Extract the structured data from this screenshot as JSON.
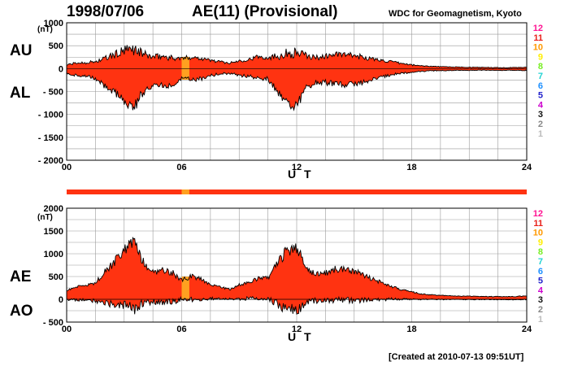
{
  "header": {
    "date": "1998/07/06",
    "title": "AE(11) (Provisional)",
    "source": "WDC for Geomagnetism, Kyoto"
  },
  "footer": {
    "created": "[Created at 2010-07-13 09:51UT]"
  },
  "station_scale": {
    "labels": [
      "12",
      "11",
      "10",
      "9",
      "8",
      "7",
      "6",
      "5",
      "4",
      "3",
      "2",
      "1"
    ],
    "colors": [
      "#ff1493",
      "#e8201a",
      "#ff9900",
      "#ffee00",
      "#77ee22",
      "#22d3d3",
      "#1e90ff",
      "#2222cc",
      "#cc00cc",
      "#111111",
      "#888888",
      "#bbbbbb"
    ]
  },
  "colors": {
    "fill": "#ff3311",
    "fill_10": "#ffa020",
    "outline": "#000000",
    "grid": "#9a9a9a"
  },
  "chart_data": [
    {
      "type": "area",
      "panel": "AU/AL",
      "series_labels": [
        "AU",
        "AL"
      ],
      "ylabel": "(nT)",
      "xlabel": "U T",
      "ylim": [
        -2000,
        1000
      ],
      "y_ticks": [
        1000,
        500,
        0,
        -500,
        -1000,
        -1500,
        -2000
      ],
      "y_tick_labels": [
        "1000",
        "500",
        "0",
        "- 500",
        "- 1000",
        "- 1500",
        "- 2000"
      ],
      "xlim": [
        0,
        24
      ],
      "x_ticks": [
        0,
        6,
        12,
        18,
        24
      ],
      "x_tick_labels": [
        "00",
        "06",
        "12",
        "18",
        "24"
      ],
      "x_grid_step_hours": 1.5,
      "y_grid_step": 250,
      "grid": true,
      "x": [
        0,
        0.5,
        1,
        1.5,
        2,
        2.5,
        3,
        3.5,
        4,
        4.5,
        5,
        5.5,
        6,
        6.5,
        7,
        7.5,
        8,
        8.5,
        9,
        9.5,
        10,
        10.5,
        11,
        11.5,
        12,
        12.5,
        13,
        13.5,
        14,
        14.5,
        15,
        15.5,
        16,
        16.5,
        17,
        17.5,
        18,
        18.5,
        19,
        19.5,
        20,
        20.5,
        21,
        21.5,
        22,
        22.5,
        23,
        23.5,
        24
      ],
      "AU": [
        80,
        120,
        130,
        150,
        220,
        300,
        380,
        430,
        320,
        250,
        270,
        230,
        220,
        250,
        230,
        180,
        150,
        120,
        170,
        200,
        260,
        240,
        280,
        330,
        350,
        280,
        240,
        270,
        310,
        300,
        280,
        250,
        200,
        180,
        140,
        110,
        80,
        60,
        50,
        40,
        35,
        30,
        30,
        25,
        25,
        20,
        20,
        25,
        30
      ],
      "AL": [
        -100,
        -150,
        -160,
        -220,
        -380,
        -520,
        -700,
        -850,
        -500,
        -350,
        -380,
        -360,
        -200,
        -250,
        -220,
        -150,
        -120,
        -100,
        -150,
        -160,
        -200,
        -220,
        -500,
        -750,
        -800,
        -420,
        -300,
        -300,
        -350,
        -350,
        -330,
        -290,
        -230,
        -180,
        -130,
        -100,
        -80,
        -60,
        -50,
        -45,
        -40,
        -40,
        -40,
        -35,
        -35,
        -40,
        -35,
        -40,
        -40
      ],
      "stations_10_intervals": [
        [
          6.0,
          6.4
        ]
      ]
    },
    {
      "type": "area",
      "panel": "AE/AO",
      "series_labels": [
        "AE",
        "AO"
      ],
      "ylabel": "(nT)",
      "xlabel": "U T",
      "ylim": [
        -500,
        2000
      ],
      "y_ticks": [
        2000,
        1500,
        1000,
        500,
        0,
        -500
      ],
      "y_tick_labels": [
        "2000",
        "1500",
        "1000",
        "500",
        "0",
        "- 500"
      ],
      "xlim": [
        0,
        24
      ],
      "x_ticks": [
        0,
        6,
        12,
        18,
        24
      ],
      "x_tick_labels": [
        "00",
        "06",
        "12",
        "18",
        "24"
      ],
      "x_grid_step_hours": 1.5,
      "y_grid_step": 250,
      "grid": true,
      "x": [
        0,
        0.5,
        1,
        1.5,
        2,
        2.5,
        3,
        3.5,
        4,
        4.5,
        5,
        5.5,
        6,
        6.5,
        7,
        7.5,
        8,
        8.5,
        9,
        9.5,
        10,
        10.5,
        11,
        11.5,
        12,
        12.5,
        13,
        13.5,
        14,
        14.5,
        15,
        15.5,
        16,
        16.5,
        17,
        17.5,
        18,
        18.5,
        19,
        19.5,
        20,
        20.5,
        21,
        21.5,
        22,
        22.5,
        23,
        23.5,
        24
      ],
      "AE": [
        200,
        270,
        290,
        370,
        600,
        820,
        1080,
        1250,
        820,
        600,
        650,
        590,
        420,
        500,
        450,
        330,
        270,
        220,
        320,
        360,
        460,
        460,
        780,
        1080,
        1150,
        700,
        540,
        570,
        660,
        650,
        610,
        540,
        430,
        360,
        270,
        210,
        160,
        120,
        100,
        85,
        75,
        70,
        70,
        60,
        60,
        60,
        55,
        65,
        70
      ],
      "AO": [
        -10,
        -15,
        -15,
        -35,
        -80,
        -110,
        -160,
        -210,
        -90,
        -50,
        -55,
        -65,
        10,
        0,
        5,
        15,
        15,
        10,
        10,
        20,
        30,
        10,
        -110,
        -210,
        -225,
        -70,
        -30,
        -15,
        -20,
        -25,
        -25,
        -20,
        -15,
        0,
        5,
        5,
        0,
        0,
        0,
        -3,
        -3,
        -5,
        -5,
        -5,
        -5,
        -10,
        -8,
        -8,
        -5
      ],
      "stations_10_intervals": [
        [
          6.0,
          6.4
        ]
      ]
    }
  ]
}
